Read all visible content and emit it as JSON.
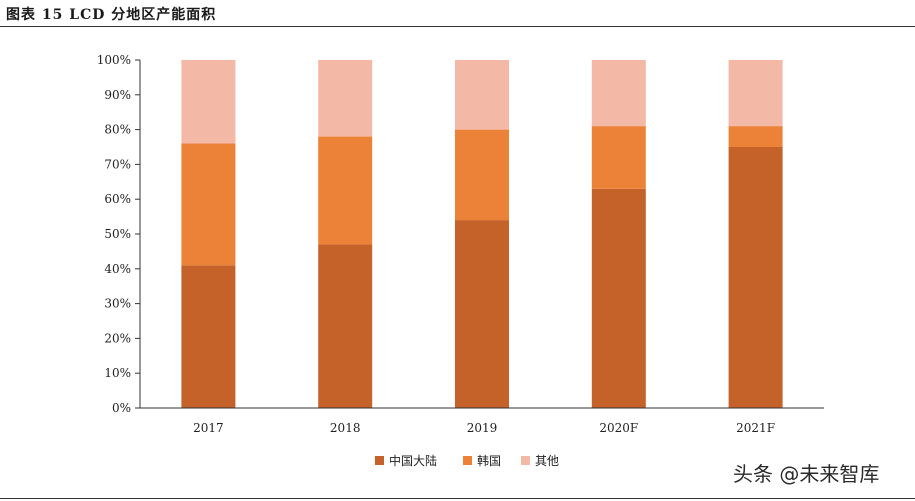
{
  "figure_title": "图表 15 LCD 分地区产能面积",
  "watermark": "头条 @未来智库",
  "colors": {
    "中国大陆": "#c4622a",
    "韩国": "#ec8237",
    "其他": "#f4b9a6",
    "axis": "#333333"
  },
  "chart_data": {
    "type": "bar",
    "stacked": true,
    "categories": [
      "2017",
      "2018",
      "2019",
      "2020F",
      "2021F"
    ],
    "series": [
      {
        "name": "中国大陆",
        "values": [
          41,
          47,
          54,
          63,
          75
        ]
      },
      {
        "name": "韩国",
        "values": [
          35,
          31,
          26,
          18,
          6
        ]
      },
      {
        "name": "其他",
        "values": [
          24,
          22,
          20,
          19,
          19
        ]
      }
    ],
    "ylim": [
      0,
      100
    ],
    "yticks": [
      "0%",
      "10%",
      "20%",
      "30%",
      "40%",
      "50%",
      "60%",
      "70%",
      "80%",
      "90%",
      "100%"
    ],
    "grid": false,
    "legend": "bottom-center"
  }
}
